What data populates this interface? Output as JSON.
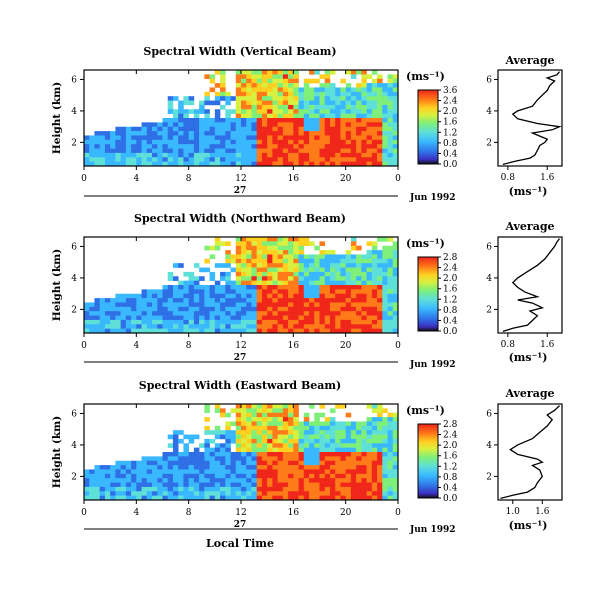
{
  "chart_data": {
    "type": "heatmap",
    "x_label": "Local Time",
    "panels": [
      {
        "title": "Spectral Width (Vertical Beam)",
        "ylabel": "Height (km)",
        "xticks": [
          "0",
          "4",
          "8",
          "12",
          "16",
          "20",
          "0"
        ],
        "yticks": [
          "2",
          "4",
          "6"
        ],
        "ylim": [
          0.5,
          6.6
        ],
        "xlim": [
          0,
          24
        ],
        "date_day": "27",
        "date_month": "Jun 1992",
        "colorbar": {
          "unit": "(ms⁻¹)",
          "ticks": [
            "3.6",
            "2.4",
            "2.0",
            "1.6",
            "1.2",
            "0.8",
            "0.4",
            "0.0"
          ]
        },
        "average": {
          "title": "Average",
          "xlabel": "(ms⁻¹)",
          "xticks": [
            "0.8",
            "1.6"
          ],
          "yticks": [
            "2",
            "4",
            "6"
          ],
          "xlim": [
            0.6,
            1.9
          ],
          "profile": [
            [
              0.7,
              0.6
            ],
            [
              0.95,
              0.8
            ],
            [
              1.25,
              1.0
            ],
            [
              1.35,
              1.2
            ],
            [
              1.4,
              1.5
            ],
            [
              1.45,
              1.8
            ],
            [
              1.55,
              2.0
            ],
            [
              1.6,
              2.2
            ],
            [
              1.45,
              2.4
            ],
            [
              1.3,
              2.6
            ],
            [
              1.7,
              2.8
            ],
            [
              1.85,
              3.0
            ],
            [
              1.4,
              3.2
            ],
            [
              1.0,
              3.5
            ],
            [
              0.9,
              3.8
            ],
            [
              1.0,
              4.0
            ],
            [
              1.3,
              4.3
            ],
            [
              1.4,
              4.7
            ],
            [
              1.5,
              5.0
            ],
            [
              1.6,
              5.3
            ],
            [
              1.65,
              5.6
            ],
            [
              1.75,
              5.9
            ],
            [
              1.6,
              6.1
            ],
            [
              1.8,
              6.3
            ],
            [
              1.85,
              6.5
            ]
          ]
        }
      },
      {
        "title": "Spectral Width (Northward Beam)",
        "ylabel": "Height (km)",
        "xticks": [
          "0",
          "4",
          "8",
          "12",
          "16",
          "20",
          "0"
        ],
        "yticks": [
          "2",
          "4",
          "6"
        ],
        "ylim": [
          0.5,
          6.6
        ],
        "xlim": [
          0,
          24
        ],
        "date_day": "27",
        "date_month": "Jun 1992",
        "colorbar": {
          "unit": "(ms⁻¹)",
          "ticks": [
            "2.8",
            "2.4",
            "2.0",
            "1.6",
            "1.2",
            "0.8",
            "0.4",
            "0.0"
          ]
        },
        "average": {
          "title": "Average",
          "xlabel": "(ms⁻¹)",
          "xticks": [
            "0.8",
            "1.6"
          ],
          "yticks": [
            "2",
            "4",
            "6"
          ],
          "xlim": [
            0.6,
            1.9
          ],
          "profile": [
            [
              0.7,
              0.6
            ],
            [
              0.9,
              0.8
            ],
            [
              1.2,
              1.0
            ],
            [
              1.3,
              1.3
            ],
            [
              1.4,
              1.6
            ],
            [
              1.25,
              1.9
            ],
            [
              1.5,
              2.1
            ],
            [
              1.3,
              2.4
            ],
            [
              1.0,
              2.6
            ],
            [
              1.4,
              2.8
            ],
            [
              1.15,
              3.1
            ],
            [
              1.0,
              3.4
            ],
            [
              0.9,
              3.7
            ],
            [
              1.0,
              4.0
            ],
            [
              1.2,
              4.4
            ],
            [
              1.4,
              4.8
            ],
            [
              1.55,
              5.2
            ],
            [
              1.65,
              5.6
            ],
            [
              1.75,
              6.0
            ],
            [
              1.8,
              6.3
            ],
            [
              1.85,
              6.5
            ]
          ]
        }
      },
      {
        "title": "Spectral Width (Eastward Beam)",
        "ylabel": "Height (km)",
        "xticks": [
          "0",
          "4",
          "8",
          "12",
          "16",
          "20",
          "0"
        ],
        "yticks": [
          "2",
          "4",
          "6"
        ],
        "ylim": [
          0.5,
          6.6
        ],
        "xlim": [
          0,
          24
        ],
        "date_day": "27",
        "date_month": "Jun 1992",
        "colorbar": {
          "unit": "(ms⁻¹)",
          "ticks": [
            "2.8",
            "2.4",
            "2.0",
            "1.6",
            "1.2",
            "0.8",
            "0.4",
            "0.0"
          ]
        },
        "average": {
          "title": "Average",
          "xlabel": "(ms⁻¹)",
          "xticks": [
            "1.0",
            "1.6"
          ],
          "yticks": [
            "2",
            "4",
            "6"
          ],
          "xlim": [
            0.7,
            2.0
          ],
          "profile": [
            [
              0.75,
              0.6
            ],
            [
              1.0,
              0.8
            ],
            [
              1.3,
              1.0
            ],
            [
              1.45,
              1.3
            ],
            [
              1.5,
              1.6
            ],
            [
              1.6,
              2.0
            ],
            [
              1.55,
              2.4
            ],
            [
              1.4,
              2.7
            ],
            [
              1.6,
              2.9
            ],
            [
              1.5,
              3.1
            ],
            [
              1.1,
              3.4
            ],
            [
              0.95,
              3.7
            ],
            [
              1.1,
              4.0
            ],
            [
              1.4,
              4.4
            ],
            [
              1.55,
              4.8
            ],
            [
              1.7,
              5.2
            ],
            [
              1.8,
              5.6
            ],
            [
              1.7,
              5.9
            ],
            [
              1.85,
              6.2
            ],
            [
              1.95,
              6.5
            ]
          ]
        }
      }
    ]
  }
}
